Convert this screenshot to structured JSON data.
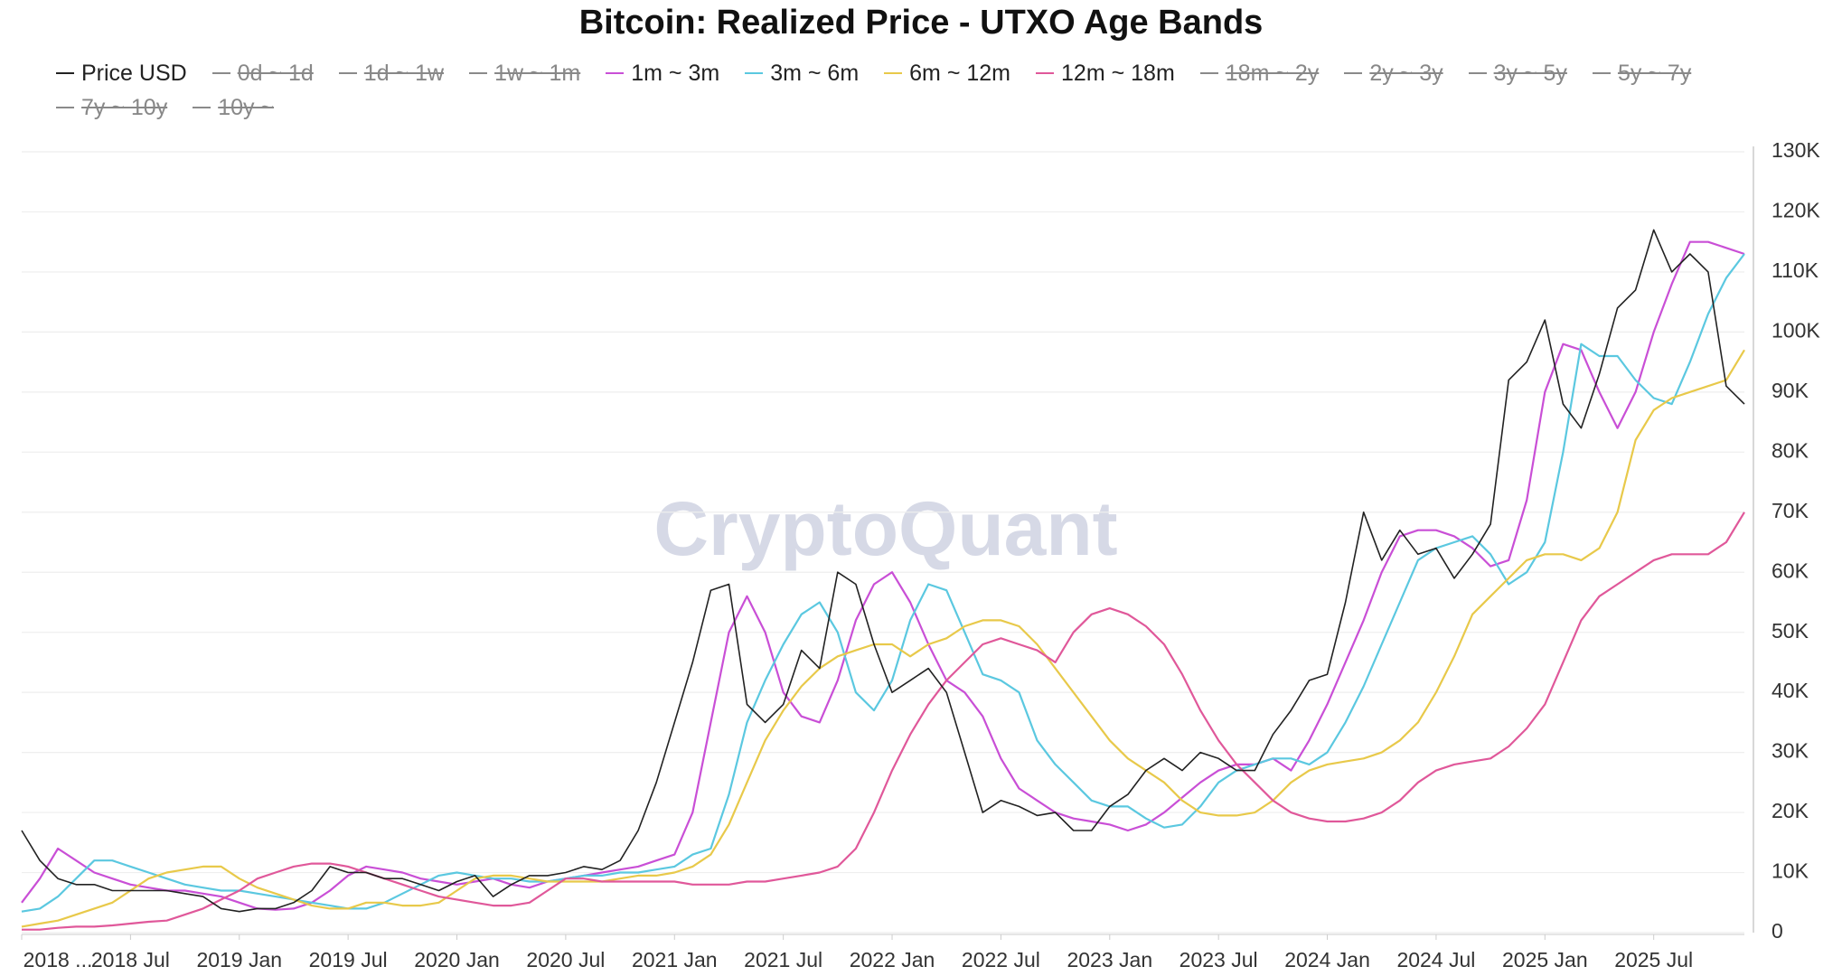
{
  "chart_data": {
    "type": "line",
    "title": "Bitcoin: Realized Price - UTXO Age Bands",
    "watermark": "CryptoQuant",
    "x": [
      "2018-01",
      "2018-02",
      "2018-03",
      "2018-04",
      "2018-05",
      "2018-06",
      "2018-07",
      "2018-08",
      "2018-09",
      "2018-10",
      "2018-11",
      "2018-12",
      "2019-01",
      "2019-02",
      "2019-03",
      "2019-04",
      "2019-05",
      "2019-06",
      "2019-07",
      "2019-08",
      "2019-09",
      "2019-10",
      "2019-11",
      "2019-12",
      "2020-01",
      "2020-02",
      "2020-03",
      "2020-04",
      "2020-05",
      "2020-06",
      "2020-07",
      "2020-08",
      "2020-09",
      "2020-10",
      "2020-11",
      "2020-12",
      "2021-01",
      "2021-02",
      "2021-03",
      "2021-04",
      "2021-05",
      "2021-06",
      "2021-07",
      "2021-08",
      "2021-09",
      "2021-10",
      "2021-11",
      "2021-12",
      "2022-01",
      "2022-02",
      "2022-03",
      "2022-04",
      "2022-05",
      "2022-06",
      "2022-07",
      "2022-08",
      "2022-09",
      "2022-10",
      "2022-11",
      "2022-12",
      "2023-01",
      "2023-02",
      "2023-03",
      "2023-04",
      "2023-05",
      "2023-06",
      "2023-07",
      "2023-08",
      "2023-09",
      "2023-10",
      "2023-11",
      "2023-12",
      "2024-01",
      "2024-02",
      "2024-03",
      "2024-04",
      "2024-05",
      "2024-06",
      "2024-07",
      "2024-08",
      "2024-09",
      "2024-10",
      "2024-11",
      "2024-12",
      "2025-01",
      "2025-02",
      "2025-03",
      "2025-04",
      "2025-05",
      "2025-06",
      "2025-07",
      "2025-08",
      "2025-09",
      "2025-10",
      "2025-11",
      "2025-12"
    ],
    "xlim": [
      "2018-01",
      "2025-12"
    ],
    "xticks": [
      {
        "value": "2018-01",
        "label": "2018 ..."
      },
      {
        "value": "2018-07",
        "label": "2018 Jul"
      },
      {
        "value": "2019-01",
        "label": "2019 Jan"
      },
      {
        "value": "2019-07",
        "label": "2019 Jul"
      },
      {
        "value": "2020-01",
        "label": "2020 Jan"
      },
      {
        "value": "2020-07",
        "label": "2020 Jul"
      },
      {
        "value": "2021-01",
        "label": "2021 Jan"
      },
      {
        "value": "2021-07",
        "label": "2021 Jul"
      },
      {
        "value": "2022-01",
        "label": "2022 Jan"
      },
      {
        "value": "2022-07",
        "label": "2022 Jul"
      },
      {
        "value": "2023-01",
        "label": "2023 Jan"
      },
      {
        "value": "2023-07",
        "label": "2023 Jul"
      },
      {
        "value": "2024-01",
        "label": "2024 Jan"
      },
      {
        "value": "2024-07",
        "label": "2024 Jul"
      },
      {
        "value": "2025-01",
        "label": "2025 Jan"
      },
      {
        "value": "2025-07",
        "label": "2025 Jul"
      }
    ],
    "ylim": [
      0,
      130000
    ],
    "yticks": [
      0,
      {
        "value": 10000,
        "label": "10K"
      },
      {
        "value": 20000,
        "label": "20K"
      },
      {
        "value": 30000,
        "label": "30K"
      },
      {
        "value": 40000,
        "label": "40K"
      },
      {
        "value": 50000,
        "label": "50K"
      },
      {
        "value": 60000,
        "label": "60K"
      },
      {
        "value": 70000,
        "label": "70K"
      },
      {
        "value": 80000,
        "label": "80K"
      },
      {
        "value": 90000,
        "label": "90K"
      },
      {
        "value": 100000,
        "label": "100K"
      },
      {
        "value": 110000,
        "label": "110K"
      },
      {
        "value": 120000,
        "label": "120K"
      },
      {
        "value": 130000,
        "label": "130K"
      }
    ],
    "grid": true,
    "y_axis_side": "right",
    "series": [
      {
        "name": "Price USD",
        "color": "#222222",
        "visible": true,
        "values": [
          17000,
          12000,
          9000,
          8000,
          8000,
          7000,
          7000,
          7000,
          7000,
          6500,
          6000,
          4000,
          3500,
          4000,
          4000,
          5000,
          7000,
          11000,
          10000,
          10000,
          9000,
          9000,
          8000,
          7000,
          8500,
          9500,
          6000,
          8000,
          9500,
          9500,
          10000,
          11000,
          10500,
          12000,
          17000,
          25000,
          35000,
          45000,
          57000,
          58000,
          38000,
          35000,
          38000,
          47000,
          44000,
          60000,
          58000,
          48000,
          40000,
          42000,
          44000,
          40000,
          30000,
          20000,
          22000,
          21000,
          19500,
          20000,
          17000,
          17000,
          21000,
          23000,
          27000,
          29000,
          27000,
          30000,
          29000,
          27000,
          27000,
          33000,
          37000,
          42000,
          43000,
          55000,
          70000,
          62000,
          67000,
          63000,
          64000,
          59000,
          63000,
          68000,
          92000,
          95000,
          102000,
          88000,
          84000,
          93000,
          104000,
          107000,
          117000,
          110000,
          113000,
          110000,
          91000,
          88000
        ]
      },
      {
        "name": "0d ~ 1d",
        "color": "#8a8a8a",
        "visible": false
      },
      {
        "name": "1d ~ 1w",
        "color": "#8a8a8a",
        "visible": false
      },
      {
        "name": "1w ~ 1m",
        "color": "#8a8a8a",
        "visible": false
      },
      {
        "name": "1m ~ 3m",
        "color": "#c94fd6",
        "visible": true,
        "values": [
          5000,
          9000,
          14000,
          12000,
          10000,
          9000,
          8000,
          7500,
          7000,
          7000,
          6500,
          6000,
          5000,
          4000,
          3800,
          4000,
          5000,
          7000,
          9500,
          11000,
          10500,
          10000,
          9000,
          8500,
          8000,
          8500,
          9000,
          8000,
          7500,
          8500,
          9000,
          9500,
          10000,
          10500,
          11000,
          12000,
          13000,
          20000,
          35000,
          50000,
          56000,
          50000,
          40000,
          36000,
          35000,
          42000,
          52000,
          58000,
          60000,
          55000,
          48000,
          42000,
          40000,
          36000,
          29000,
          24000,
          22000,
          20000,
          19000,
          18500,
          18000,
          17000,
          18000,
          20000,
          22500,
          25000,
          27000,
          28000,
          28000,
          29000,
          27000,
          32000,
          38000,
          45000,
          52000,
          60000,
          66000,
          67000,
          67000,
          66000,
          64000,
          61000,
          62000,
          72000,
          90000,
          98000,
          97000,
          90000,
          84000,
          90000,
          100000,
          108000,
          115000,
          115000,
          114000,
          113000
        ]
      },
      {
        "name": "3m ~ 6m",
        "color": "#5bc8e0",
        "visible": true,
        "values": [
          3500,
          4000,
          6000,
          9000,
          12000,
          12000,
          11000,
          10000,
          9000,
          8000,
          7500,
          7000,
          7000,
          6500,
          6000,
          5500,
          5000,
          4500,
          4000,
          4000,
          5000,
          6500,
          8000,
          9500,
          10000,
          9500,
          9000,
          9000,
          8500,
          8500,
          9000,
          9500,
          9500,
          10000,
          10000,
          10500,
          11000,
          13000,
          14000,
          23000,
          35000,
          42000,
          48000,
          53000,
          55000,
          50000,
          40000,
          37000,
          42000,
          52000,
          58000,
          57000,
          50000,
          43000,
          42000,
          40000,
          32000,
          28000,
          25000,
          22000,
          21000,
          21000,
          19000,
          17500,
          18000,
          21000,
          25000,
          27000,
          28000,
          29000,
          29000,
          28000,
          30000,
          35000,
          41000,
          48000,
          55000,
          62000,
          64000,
          65000,
          66000,
          63000,
          58000,
          60000,
          65000,
          80000,
          98000,
          96000,
          96000,
          92000,
          89000,
          88000,
          95000,
          103000,
          109000,
          113000
        ]
      },
      {
        "name": "6m ~ 12m",
        "color": "#e8c94a",
        "visible": true,
        "values": [
          1000,
          1500,
          2000,
          3000,
          4000,
          5000,
          7000,
          9000,
          10000,
          10500,
          11000,
          11000,
          9000,
          7500,
          6500,
          5500,
          4500,
          4000,
          4000,
          5000,
          5000,
          4500,
          4500,
          5000,
          7000,
          9000,
          9500,
          9500,
          9000,
          8500,
          8500,
          8500,
          8500,
          9000,
          9500,
          9500,
          10000,
          11000,
          13000,
          18000,
          25000,
          32000,
          37000,
          41000,
          44000,
          46000,
          47000,
          48000,
          48000,
          46000,
          48000,
          49000,
          51000,
          52000,
          52000,
          51000,
          48000,
          44000,
          40000,
          36000,
          32000,
          29000,
          27000,
          25000,
          22000,
          20000,
          19500,
          19500,
          20000,
          22000,
          25000,
          27000,
          28000,
          28500,
          29000,
          30000,
          32000,
          35000,
          40000,
          46000,
          53000,
          56000,
          59000,
          62000,
          63000,
          63000,
          62000,
          64000,
          70000,
          82000,
          87000,
          89000,
          90000,
          91000,
          92000,
          97000
        ]
      },
      {
        "name": "12m ~ 18m",
        "color": "#e0589a",
        "visible": true,
        "values": [
          500,
          500,
          800,
          1000,
          1000,
          1200,
          1500,
          1800,
          2000,
          3000,
          4000,
          5500,
          7000,
          9000,
          10000,
          11000,
          11500,
          11500,
          11000,
          10000,
          9000,
          8000,
          7000,
          6000,
          5500,
          5000,
          4500,
          4500,
          5000,
          7000,
          9000,
          9000,
          8500,
          8500,
          8500,
          8500,
          8500,
          8000,
          8000,
          8000,
          8500,
          8500,
          9000,
          9500,
          10000,
          11000,
          14000,
          20000,
          27000,
          33000,
          38000,
          42000,
          45000,
          48000,
          49000,
          48000,
          47000,
          45000,
          50000,
          53000,
          54000,
          53000,
          51000,
          48000,
          43000,
          37000,
          32000,
          28000,
          25000,
          22000,
          20000,
          19000,
          18500,
          18500,
          19000,
          20000,
          22000,
          25000,
          27000,
          28000,
          28500,
          29000,
          31000,
          34000,
          38000,
          45000,
          52000,
          56000,
          58000,
          60000,
          62000,
          63000,
          63000,
          63000,
          65000,
          70000
        ]
      },
      {
        "name": "18m ~ 2y",
        "color": "#8a8a8a",
        "visible": false
      },
      {
        "name": "2y ~ 3y",
        "color": "#8a8a8a",
        "visible": false
      },
      {
        "name": "3y ~ 5y",
        "color": "#8a8a8a",
        "visible": false
      },
      {
        "name": "5y ~ 7y",
        "color": "#8a8a8a",
        "visible": false
      },
      {
        "name": "7y ~ 10y",
        "color": "#8a8a8a",
        "visible": false
      },
      {
        "name": "10y ~",
        "color": "#8a8a8a",
        "visible": false
      }
    ]
  }
}
